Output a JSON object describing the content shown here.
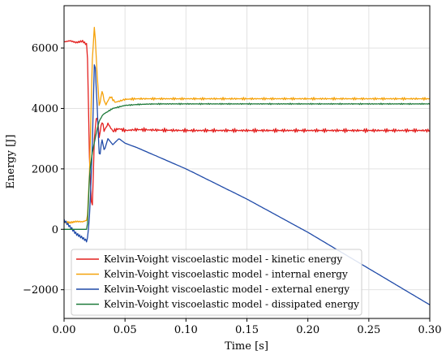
{
  "chart_data": {
    "type": "line",
    "xlabel": "Time [s]",
    "ylabel": "Energy [J]",
    "xlim": [
      0.0,
      0.3
    ],
    "ylim": [
      -2950,
      7400
    ],
    "xticks": [
      0.0,
      0.05,
      0.1,
      0.15,
      0.2,
      0.25,
      0.3
    ],
    "xtick_labels": [
      "0.00",
      "0.05",
      "0.10",
      "0.15",
      "0.20",
      "0.25",
      "0.30"
    ],
    "yticks": [
      -2000,
      0,
      2000,
      4000,
      6000
    ],
    "ytick_labels": [
      "−2000",
      "0",
      "2000",
      "4000",
      "6000"
    ],
    "grid": true,
    "legend_position": "bottom-center",
    "series": [
      {
        "name": "Kelvin-Voight viscoelastic model - kinetic energy",
        "color": "#e3201f",
        "x": [
          0,
          0.005,
          0.01,
          0.015,
          0.019,
          0.021,
          0.023,
          0.025,
          0.027,
          0.029,
          0.031,
          0.033,
          0.036,
          0.04,
          0.045,
          0.05,
          0.06,
          0.08,
          0.1,
          0.15,
          0.2,
          0.25,
          0.3
        ],
        "y": [
          6200,
          6240,
          6180,
          6230,
          6100,
          2000,
          500,
          3200,
          3800,
          3000,
          3600,
          3250,
          3500,
          3250,
          3330,
          3270,
          3300,
          3280,
          3270,
          3270,
          3270,
          3270,
          3270
        ]
      },
      {
        "name": "Kelvin-Voight viscoelastic model - internal energy",
        "color": "#f5a20b",
        "x": [
          0,
          0.005,
          0.01,
          0.015,
          0.019,
          0.021,
          0.023,
          0.025,
          0.027,
          0.029,
          0.031,
          0.034,
          0.038,
          0.042,
          0.05,
          0.06,
          0.08,
          0.1,
          0.15,
          0.2,
          0.25,
          0.3
        ],
        "y": [
          250,
          220,
          260,
          250,
          300,
          2000,
          5500,
          6800,
          5200,
          4000,
          4600,
          4100,
          4400,
          4200,
          4300,
          4320,
          4320,
          4320,
          4320,
          4320,
          4320,
          4320
        ]
      },
      {
        "name": "Kelvin-Voight viscoelastic model - external energy",
        "color": "#1f4aa8",
        "x": [
          0,
          0.005,
          0.01,
          0.015,
          0.019,
          0.021,
          0.023,
          0.025,
          0.027,
          0.029,
          0.031,
          0.033,
          0.036,
          0.04,
          0.045,
          0.05,
          0.06,
          0.08,
          0.1,
          0.15,
          0.2,
          0.25,
          0.3
        ],
        "y": [
          300,
          80,
          -150,
          -280,
          -400,
          500,
          2500,
          5800,
          4200,
          2300,
          3000,
          2600,
          3000,
          2800,
          3000,
          2850,
          2700,
          2350,
          2000,
          1000,
          -100,
          -1300,
          -2500
        ]
      },
      {
        "name": "Kelvin-Voight viscoelastic model - dissipated energy",
        "color": "#1f7a3a",
        "x": [
          0,
          0.005,
          0.01,
          0.015,
          0.019,
          0.021,
          0.023,
          0.025,
          0.027,
          0.029,
          0.032,
          0.036,
          0.04,
          0.045,
          0.05,
          0.06,
          0.07,
          0.08,
          0.1,
          0.15,
          0.2,
          0.25,
          0.3
        ],
        "y": [
          0,
          0,
          0,
          0,
          0,
          1900,
          2500,
          2900,
          3300,
          3600,
          3800,
          3900,
          4000,
          4050,
          4100,
          4130,
          4145,
          4150,
          4150,
          4150,
          4150,
          4150,
          4150
        ]
      }
    ]
  }
}
